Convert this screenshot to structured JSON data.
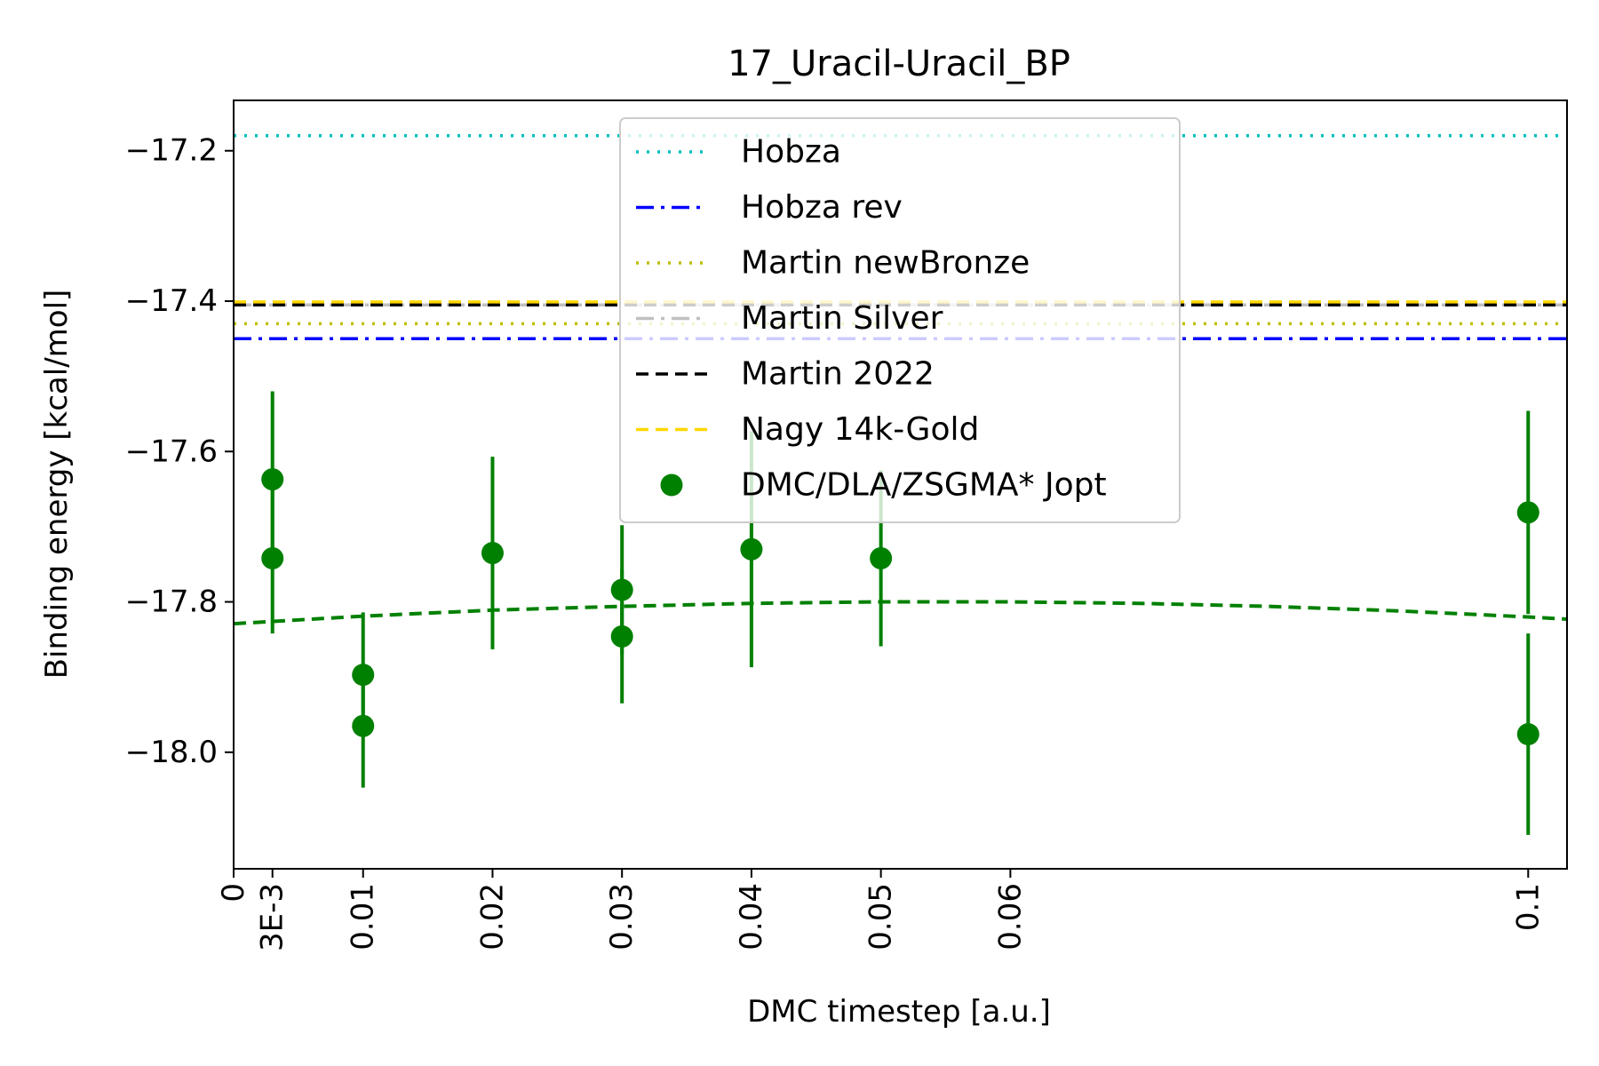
{
  "chart_data": {
    "type": "scatter",
    "title": "17_Uracil-Uracil_BP",
    "xlabel": "DMC timestep [a.u.]",
    "ylabel": "Binding energy [kcal/mol]",
    "xlim": [
      0,
      0.103
    ],
    "ylim": [
      -18.155,
      -17.133
    ],
    "x_ticks": [
      {
        "value": 0,
        "label": "0"
      },
      {
        "value": 0.003,
        "label": "3E-3"
      },
      {
        "value": 0.01,
        "label": "0.01"
      },
      {
        "value": 0.02,
        "label": "0.02"
      },
      {
        "value": 0.03,
        "label": "0.03"
      },
      {
        "value": 0.04,
        "label": "0.04"
      },
      {
        "value": 0.05,
        "label": "0.05"
      },
      {
        "value": 0.06,
        "label": "0.06"
      },
      {
        "value": 0.1,
        "label": "0.1"
      }
    ],
    "y_ticks": [
      {
        "value": -17.2,
        "label": "−17.2"
      },
      {
        "value": -17.4,
        "label": "−17.4"
      },
      {
        "value": -17.6,
        "label": "−17.6"
      },
      {
        "value": -17.8,
        "label": "−17.8"
      },
      {
        "value": -18.0,
        "label": "−18.0"
      }
    ],
    "grid": false,
    "legend_position": "top-center",
    "reference_lines": [
      {
        "name": "Hobza",
        "y": -17.18,
        "color": "#00bfbf",
        "style": "dotted"
      },
      {
        "name": "Hobza rev",
        "y": -17.45,
        "color": "#0000ff",
        "style": "dashdot"
      },
      {
        "name": "Martin newBronze",
        "y": -17.43,
        "color": "#bfbf00",
        "style": "dotted"
      },
      {
        "name": "Martin Silver",
        "y": -17.405,
        "color": "#c0c0c0",
        "style": "dashdot"
      },
      {
        "name": "Martin 2022",
        "y": -17.405,
        "color": "#000000",
        "style": "dashed"
      },
      {
        "name": "Nagy 14k-Gold",
        "y": -17.401,
        "color": "#ffd700",
        "style": "dashed"
      }
    ],
    "series": [
      {
        "name": "DMC/DLA/ZSGMA* Jopt",
        "color": "#008000",
        "points": [
          {
            "x": 0.003,
            "y": -17.637,
            "err": 0.117
          },
          {
            "x": 0.003,
            "y": -17.742,
            "err": 0.1
          },
          {
            "x": 0.01,
            "y": -17.897,
            "err": 0.083
          },
          {
            "x": 0.01,
            "y": -17.965,
            "err": 0.082
          },
          {
            "x": 0.02,
            "y": -17.735,
            "err": 0.128
          },
          {
            "x": 0.03,
            "y": -17.784,
            "err": 0.086
          },
          {
            "x": 0.03,
            "y": -17.846,
            "err": 0.089
          },
          {
            "x": 0.04,
            "y": -17.73,
            "err": 0.157
          },
          {
            "x": 0.05,
            "y": -17.742,
            "err": 0.117
          },
          {
            "x": 0.1,
            "y": -17.681,
            "err": 0.135
          },
          {
            "x": 0.1,
            "y": -17.976,
            "err": 0.134
          }
        ]
      }
    ],
    "fit": {
      "color": "#008000",
      "style": "dashed",
      "x": [
        0,
        0.01,
        0.02,
        0.03,
        0.04,
        0.05,
        0.06,
        0.07,
        0.08,
        0.09,
        0.1,
        0.103
      ],
      "y": [
        -17.829,
        -17.819,
        -17.811,
        -17.806,
        -17.802,
        -17.8,
        -17.8,
        -17.802,
        -17.806,
        -17.812,
        -17.82,
        -17.823
      ]
    }
  }
}
